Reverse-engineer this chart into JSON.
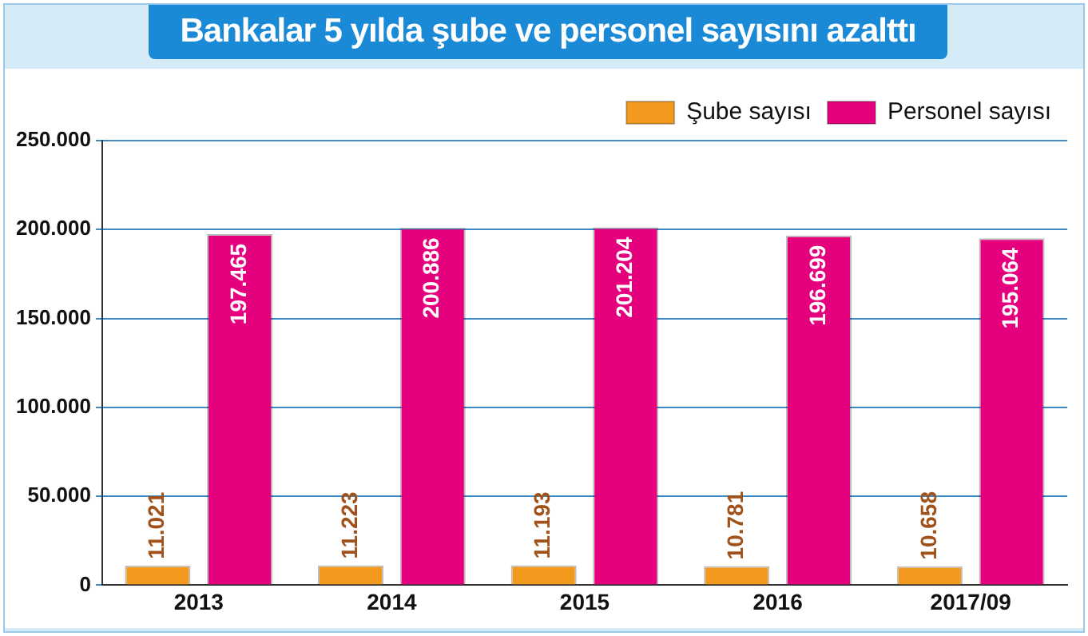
{
  "chart_data": {
    "type": "bar",
    "title": "Bankalar 5 yılda şube ve personel sayısını azalttı",
    "categories": [
      "2013",
      "2014",
      "2015",
      "2016",
      "2017/09"
    ],
    "series": [
      {
        "name": "Şube sayısı",
        "color": "#f39a1e",
        "values": [
          11021,
          11223,
          11193,
          10781,
          10658
        ],
        "value_labels": [
          "11.021",
          "11.223",
          "11.193",
          "10.781",
          "10.658"
        ]
      },
      {
        "name": "Personel sayısı",
        "color": "#e5007d",
        "values": [
          197465,
          200886,
          201204,
          196699,
          195064
        ],
        "value_labels": [
          "197.465",
          "200.886",
          "201.204",
          "196.699",
          "195.064"
        ]
      }
    ],
    "ylim": [
      0,
      250000
    ],
    "yticks": [
      {
        "value": 0,
        "label": "0"
      },
      {
        "value": 50000,
        "label": "50.000"
      },
      {
        "value": 100000,
        "label": "100.000"
      },
      {
        "value": 150000,
        "label": "150.000"
      },
      {
        "value": 200000,
        "label": "200.000"
      },
      {
        "value": 250000,
        "label": "250.000"
      }
    ],
    "grid": "y",
    "legend": "top right"
  }
}
